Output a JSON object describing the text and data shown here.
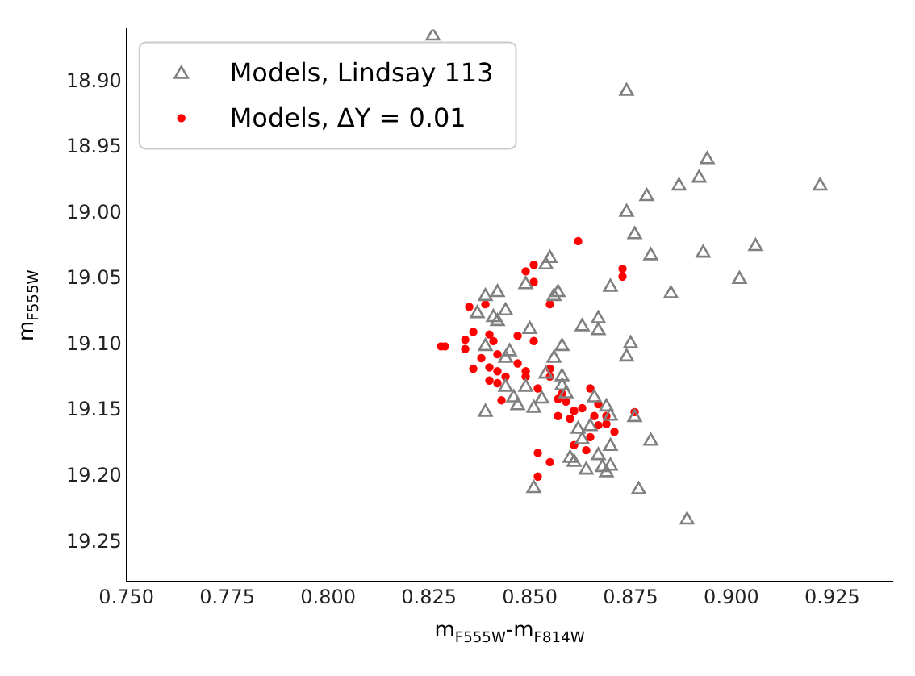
{
  "chart_data": {
    "type": "scatter",
    "xlabel": "m$_{F555W}$-m$_{F814W}$",
    "ylabel": "m$_{F555W}$",
    "xlim": [
      0.75,
      0.94
    ],
    "xticks": [
      {
        "value": 0.75,
        "label": "0.750"
      },
      {
        "value": 0.775,
        "label": "0.775"
      },
      {
        "value": 0.8,
        "label": "0.800"
      },
      {
        "value": 0.825,
        "label": "0.825"
      },
      {
        "value": 0.85,
        "label": "0.850"
      },
      {
        "value": 0.875,
        "label": "0.875"
      },
      {
        "value": 0.9,
        "label": "0.900"
      },
      {
        "value": 0.925,
        "label": "0.925"
      }
    ],
    "ylim": [
      19.28,
      18.86
    ],
    "yticks": [
      {
        "value": 18.9,
        "label": "18.90"
      },
      {
        "value": 18.95,
        "label": "18.95"
      },
      {
        "value": 19.0,
        "label": "19.00"
      },
      {
        "value": 19.05,
        "label": "19.05"
      },
      {
        "value": 19.1,
        "label": "19.10"
      },
      {
        "value": 19.15,
        "label": "19.15"
      },
      {
        "value": 19.2,
        "label": "19.20"
      },
      {
        "value": 19.25,
        "label": "19.25"
      }
    ],
    "grid": false,
    "legend": "top left",
    "series": [
      {
        "name": "Models, Lindsay 113",
        "color": "#808080",
        "marker": "triangle",
        "x": [
          0.826,
          0.874,
          0.894,
          0.892,
          0.887,
          0.879,
          0.922,
          0.874,
          0.876,
          0.88,
          0.893,
          0.906,
          0.902,
          0.885,
          0.87,
          0.855,
          0.854,
          0.849,
          0.839,
          0.842,
          0.857,
          0.856,
          0.837,
          0.844,
          0.841,
          0.842,
          0.85,
          0.863,
          0.867,
          0.867,
          0.839,
          0.845,
          0.858,
          0.844,
          0.856,
          0.875,
          0.874,
          0.858,
          0.854,
          0.858,
          0.844,
          0.849,
          0.859,
          0.846,
          0.853,
          0.866,
          0.839,
          0.851,
          0.869,
          0.847,
          0.87,
          0.876,
          0.88,
          0.862,
          0.865,
          0.863,
          0.87,
          0.867,
          0.86,
          0.861,
          0.864,
          0.868,
          0.87,
          0.869,
          0.877,
          0.889,
          0.851
        ],
        "values": [
          18.865,
          18.907,
          18.959,
          18.973,
          18.979,
          18.987,
          18.979,
          18.999,
          19.016,
          19.032,
          19.03,
          19.025,
          19.05,
          19.061,
          19.056,
          19.034,
          19.039,
          19.054,
          19.063,
          19.06,
          19.06,
          19.063,
          19.076,
          19.074,
          19.079,
          19.082,
          19.088,
          19.086,
          19.08,
          19.089,
          19.101,
          19.105,
          19.101,
          19.11,
          19.11,
          19.099,
          19.109,
          19.124,
          19.122,
          19.131,
          19.132,
          19.132,
          19.137,
          19.14,
          19.141,
          19.14,
          19.151,
          19.148,
          19.147,
          19.146,
          19.154,
          19.155,
          19.173,
          19.164,
          19.162,
          19.172,
          19.177,
          19.184,
          19.186,
          19.189,
          19.195,
          19.193,
          19.192,
          19.197,
          19.21,
          19.233,
          19.209
        ]
      },
      {
        "name": "Models, ΔY = 0.01",
        "color": "#ff0000",
        "marker": "circle",
        "x": [
          0.862,
          0.849,
          0.851,
          0.851,
          0.873,
          0.873,
          0.855,
          0.835,
          0.839,
          0.829,
          0.828,
          0.834,
          0.836,
          0.84,
          0.841,
          0.847,
          0.851,
          0.834,
          0.838,
          0.842,
          0.847,
          0.836,
          0.84,
          0.84,
          0.842,
          0.844,
          0.842,
          0.849,
          0.849,
          0.855,
          0.855,
          0.852,
          0.858,
          0.857,
          0.859,
          0.865,
          0.867,
          0.843,
          0.876,
          0.861,
          0.857,
          0.86,
          0.863,
          0.869,
          0.866,
          0.867,
          0.869,
          0.871,
          0.865,
          0.861,
          0.864,
          0.855,
          0.852,
          0.852
        ],
        "values": [
          19.021,
          19.044,
          19.039,
          19.052,
          19.042,
          19.048,
          19.069,
          19.071,
          19.069,
          19.101,
          19.101,
          19.096,
          19.09,
          19.092,
          19.097,
          19.093,
          19.097,
          19.103,
          19.11,
          19.107,
          19.114,
          19.118,
          19.117,
          19.127,
          19.12,
          19.124,
          19.129,
          19.12,
          19.124,
          19.118,
          19.124,
          19.133,
          19.137,
          19.141,
          19.143,
          19.133,
          19.145,
          19.142,
          19.151,
          19.15,
          19.154,
          19.156,
          19.148,
          19.154,
          19.154,
          19.161,
          19.16,
          19.166,
          19.17,
          19.176,
          19.18,
          19.189,
          19.182,
          19.2
        ]
      }
    ]
  }
}
